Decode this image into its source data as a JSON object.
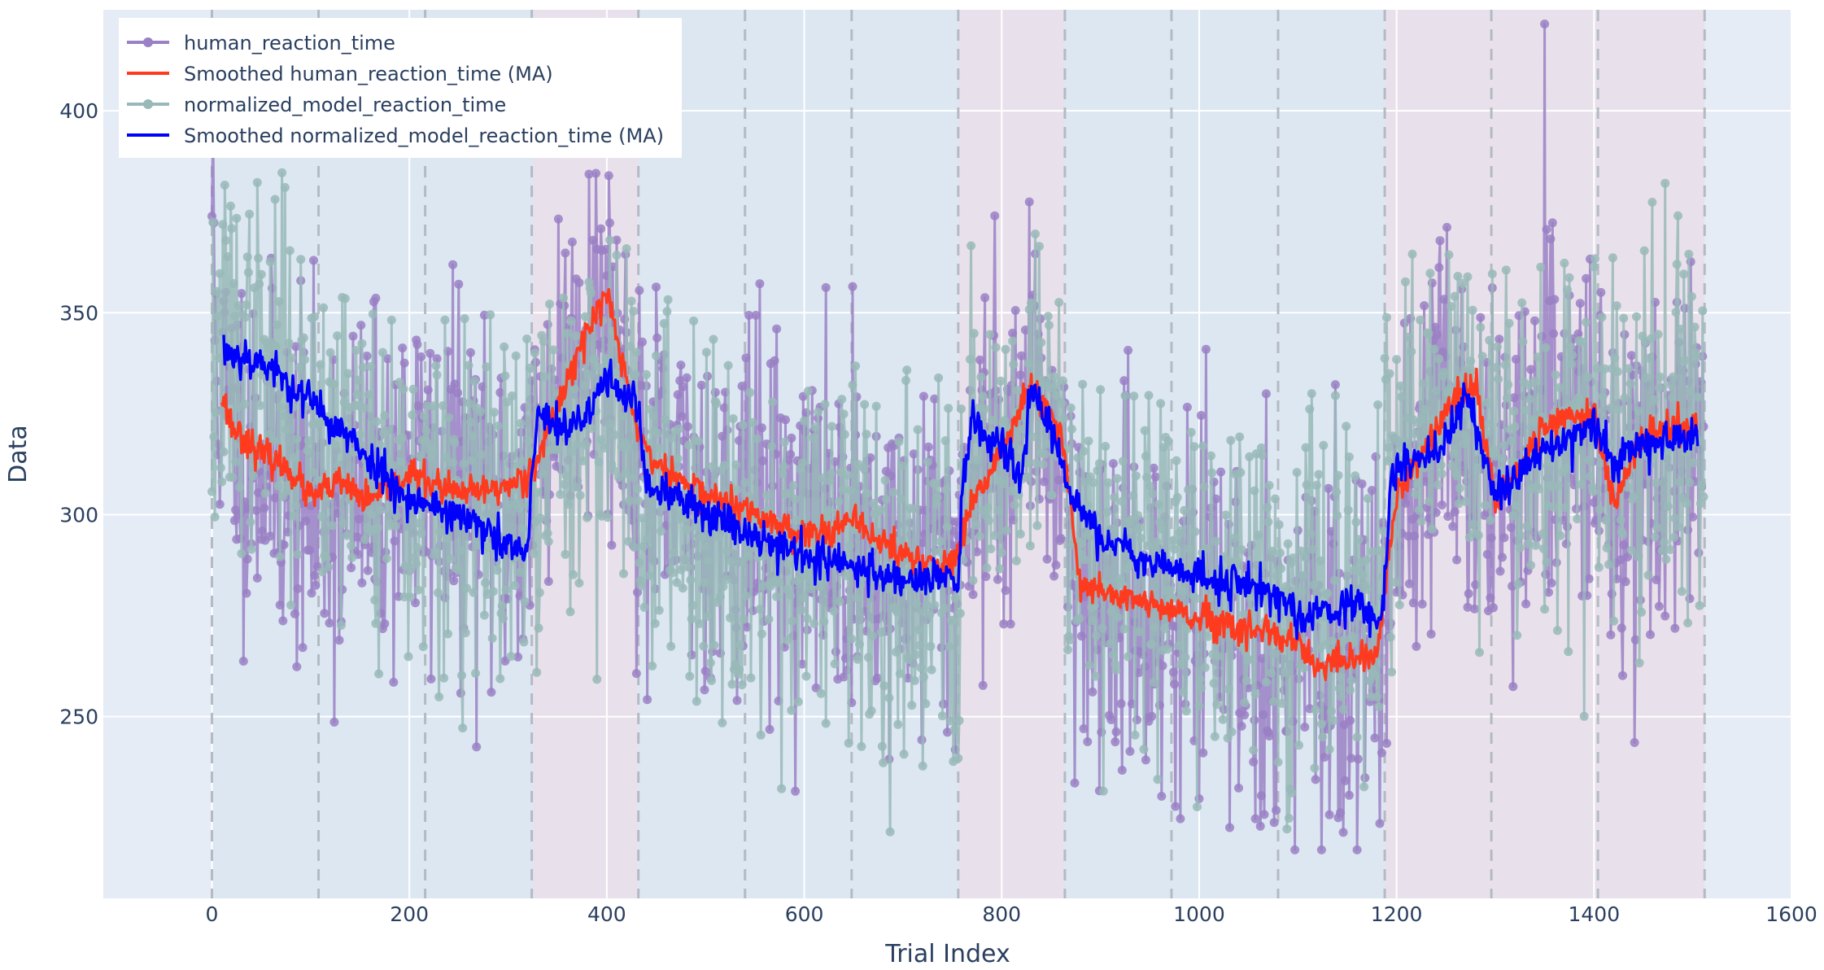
{
  "chart_data": {
    "type": "line",
    "title": "",
    "xlabel": "Trial Index",
    "ylabel": "Data",
    "xlim": [
      -110,
      1600
    ],
    "ylim": [
      205,
      425
    ],
    "x_ticks": [
      0,
      200,
      400,
      600,
      800,
      1000,
      1200,
      1400,
      1600
    ],
    "y_ticks": [
      250,
      300,
      350,
      400
    ],
    "grid": true,
    "legend_position": "top-left",
    "n_trials": 1512,
    "colors": {
      "plot_background": "#e5ecf6",
      "blue_region": "#dce7f2",
      "pink_region": "#e8e1eb",
      "boundary_line": "#b4bac4",
      "human": "#9a80c4",
      "human_smooth": "#ff3b1f",
      "model": "#99b8b8",
      "model_smooth": "#0000ff"
    },
    "block_boundaries": [
      0,
      108,
      216,
      324,
      432,
      540,
      648,
      756,
      864,
      972,
      1080,
      1188,
      1296,
      1404,
      1512
    ],
    "block_conditions": [
      "blue",
      "blue",
      "blue",
      "pink",
      "blue",
      "blue",
      "blue",
      "pink",
      "blue",
      "blue",
      "blue",
      "pink",
      "pink",
      "pink"
    ],
    "series": [
      {
        "name": "human_reaction_time",
        "style": "lines+markers",
        "color": "#9a80c4",
        "anchors_x": [
          0,
          5,
          20,
          50,
          100,
          150,
          200,
          250,
          300,
          324,
          360,
          400,
          430,
          440,
          500,
          600,
          700,
          756,
          770,
          800,
          830,
          860,
          880,
          950,
          1000,
          1050,
          1100,
          1150,
          1180,
          1195,
          1250,
          1300,
          1350,
          1400,
          1420,
          1450,
          1510
        ],
        "anchors_y": [
          380,
          335,
          322,
          315,
          303,
          303,
          310,
          307,
          300,
          310,
          340,
          352,
          320,
          305,
          305,
          297,
          288,
          292,
          310,
          318,
          330,
          318,
          280,
          279,
          273,
          272,
          262,
          265,
          265,
          300,
          327,
          305,
          320,
          325,
          300,
          315,
          320
        ],
        "noise_sd": 22
      },
      {
        "name": "Smoothed human_reaction_time (MA)",
        "style": "lines",
        "color": "#ff3b1f",
        "x_range": [
          10,
          1505
        ],
        "anchors_x": [
          10,
          20,
          50,
          80,
          100,
          130,
          160,
          200,
          250,
          300,
          320,
          340,
          370,
          400,
          430,
          450,
          500,
          550,
          600,
          650,
          700,
          740,
          756,
          770,
          800,
          830,
          860,
          880,
          920,
          1000,
          1050,
          1100,
          1120,
          1150,
          1180,
          1200,
          1250,
          1280,
          1300,
          1350,
          1400,
          1420,
          1450,
          1505
        ],
        "anchors_y": [
          330,
          322,
          315,
          311,
          304,
          308,
          303,
          310,
          305,
          307,
          310,
          320,
          340,
          355,
          322,
          312,
          305,
          300,
          295,
          298,
          290,
          287,
          290,
          302,
          316,
          332,
          320,
          283,
          280,
          274,
          271,
          268,
          262,
          264,
          265,
          305,
          325,
          333,
          303,
          322,
          326,
          302,
          320,
          322
        ],
        "noise_sd": 2
      },
      {
        "name": "normalized_model_reaction_time",
        "style": "lines+markers",
        "color": "#99b8b8",
        "anchors_x": [
          0,
          10,
          20,
          50,
          100,
          150,
          200,
          250,
          300,
          324,
          360,
          400,
          430,
          440,
          500,
          600,
          700,
          756,
          770,
          800,
          830,
          860,
          880,
          950,
          1000,
          1050,
          1100,
          1150,
          1180,
          1195,
          1250,
          1300,
          1350,
          1400,
          1420,
          1450,
          1510
        ],
        "anchors_y": [
          330,
          340,
          338,
          335,
          326,
          318,
          305,
          300,
          295,
          305,
          320,
          330,
          322,
          305,
          300,
          292,
          285,
          285,
          318,
          315,
          330,
          320,
          300,
          288,
          284,
          282,
          276,
          276,
          274,
          315,
          325,
          318,
          320,
          322,
          310,
          318,
          322
        ],
        "noise_sd": 22
      },
      {
        "name": "Smoothed normalized_model_reaction_time (MA)",
        "style": "lines",
        "color": "#0000ff",
        "x_range": [
          12,
          1505
        ],
        "anchors_x": [
          12,
          20,
          50,
          100,
          150,
          200,
          250,
          300,
          320,
          324,
          330,
          360,
          380,
          400,
          430,
          440,
          500,
          550,
          600,
          650,
          700,
          750,
          756,
          760,
          770,
          800,
          820,
          830,
          850,
          860,
          870,
          900,
          950,
          1000,
          1050,
          1080,
          1100,
          1150,
          1180,
          1185,
          1195,
          1250,
          1270,
          1300,
          1350,
          1400,
          1420,
          1450,
          1505
        ],
        "anchors_y": [
          341,
          340,
          338,
          328,
          316,
          304,
          300,
          292,
          290,
          310,
          325,
          320,
          325,
          334,
          328,
          307,
          301,
          295,
          290,
          287,
          284,
          285,
          280,
          305,
          324,
          315,
          310,
          330,
          323,
          312,
          305,
          294,
          289,
          284,
          283,
          280,
          275,
          278,
          274,
          275,
          310,
          318,
          330,
          305,
          316,
          322,
          312,
          318,
          320
        ],
        "noise_sd": 2.5
      }
    ]
  }
}
